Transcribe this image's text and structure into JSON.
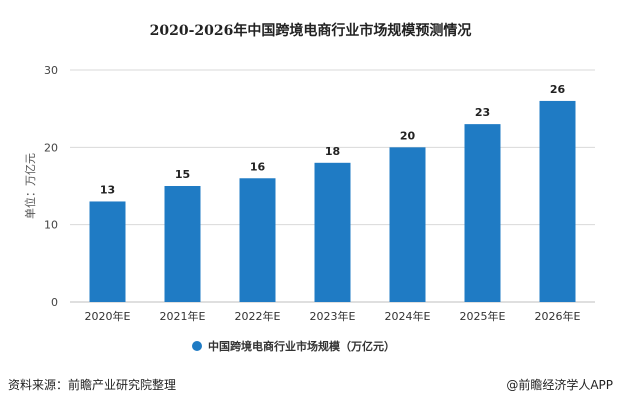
{
  "title": "2020-2026年中国跨境电商行业市场规模预测情况",
  "source_left": "资料来源：前瞻产业研究院整理",
  "source_right": "@前瞻经济学人APP",
  "bar_color": "#1f7bc4",
  "chart_data": {
    "type": "bar",
    "title": "2020-2026年中国跨境电商行业市场规模预测情况",
    "categories": [
      "2020年E",
      "2021年E",
      "2022年E",
      "2023年E",
      "2024年E",
      "2025年E",
      "2026年E"
    ],
    "series": [
      {
        "name": "中国跨境电商行业市场规模（万亿元）",
        "values": [
          13,
          15,
          16,
          18,
          20,
          23,
          26
        ]
      }
    ],
    "ylabel": "单位：万亿元",
    "xlabel": "",
    "ylim": [
      0,
      30
    ],
    "yticks": [
      0,
      10,
      20,
      30
    ],
    "legend_position": "bottom",
    "grid": true
  }
}
